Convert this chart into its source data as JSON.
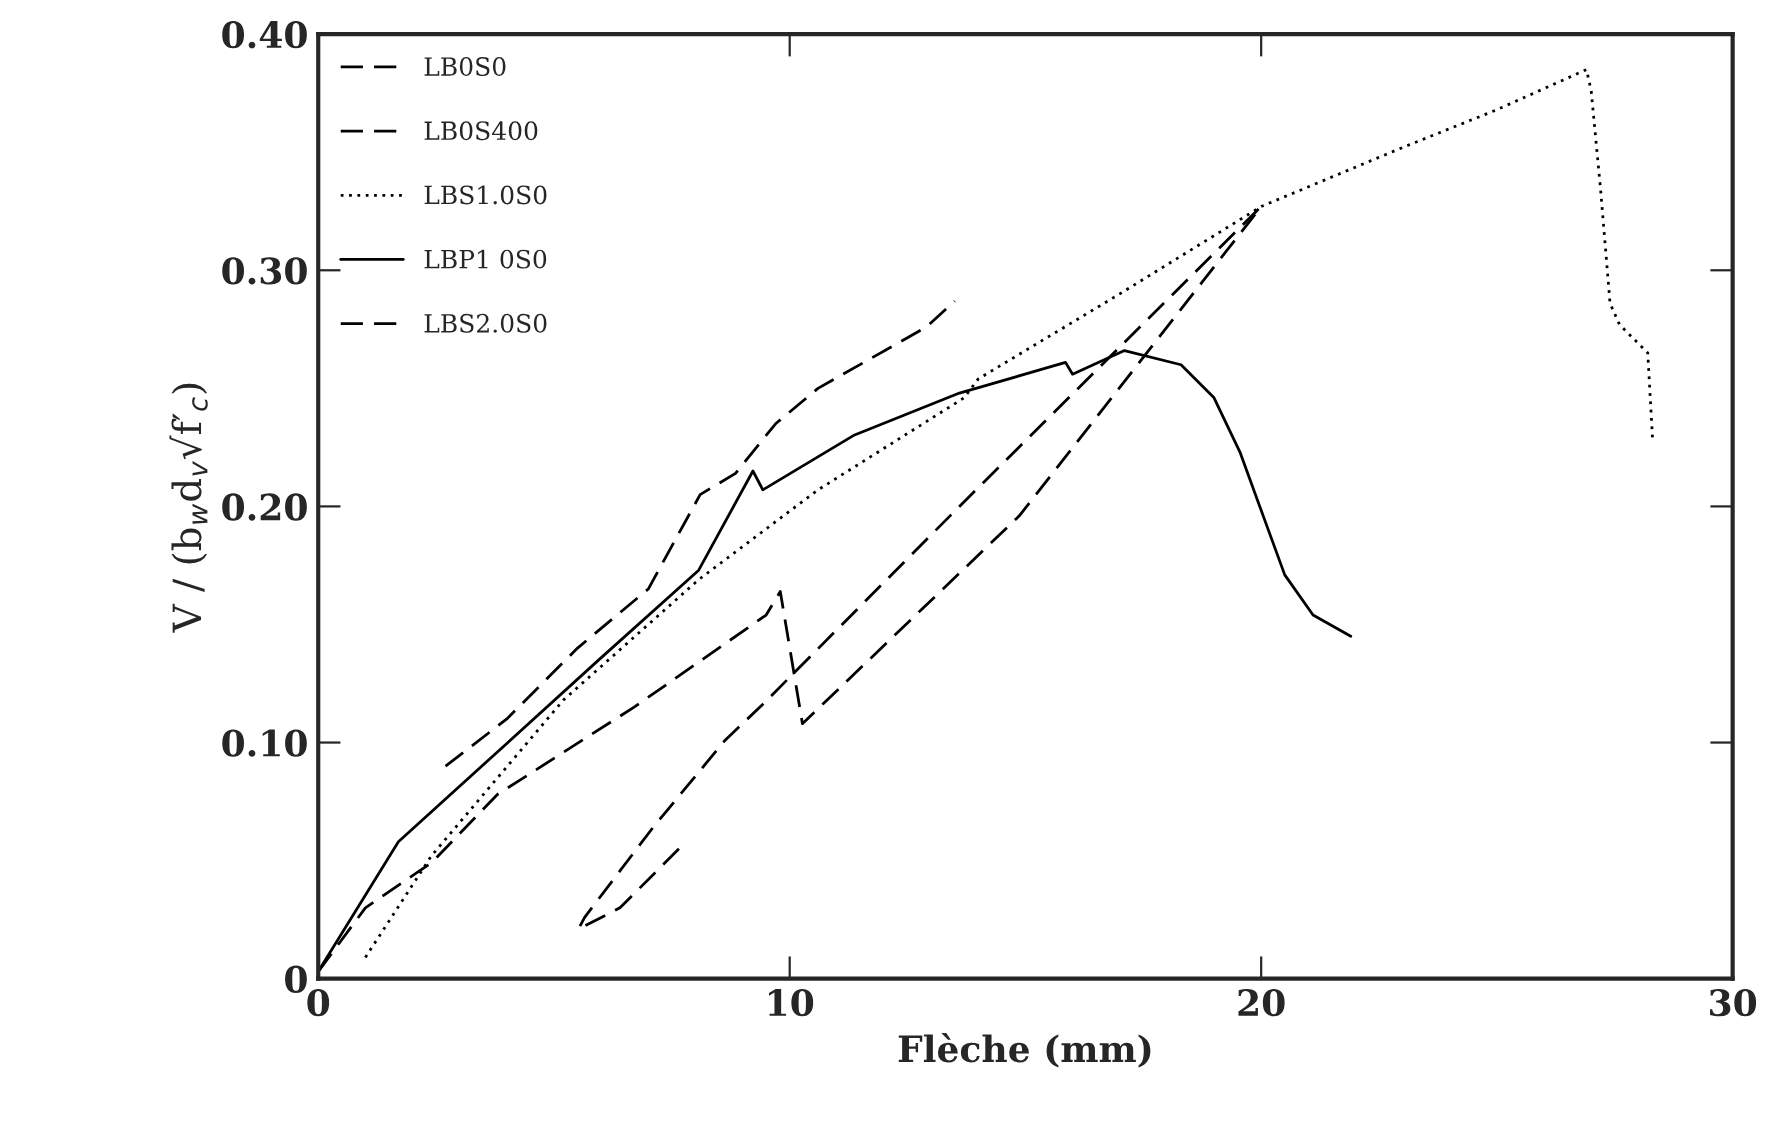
{
  "chart_data": {
    "type": "line",
    "xlabel": "Flèche (mm)",
    "ylabel": "V / (b$_{w}$d$_{v}$√f′$_{c}$)",
    "xlim": [
      0,
      30
    ],
    "xticks": [
      0,
      10,
      20,
      30
    ],
    "ylim": [
      0,
      0.4
    ],
    "yticks": [
      0,
      {
        "value": 0.1,
        "label": "0.10"
      },
      {
        "value": 0.2,
        "label": "0.20"
      },
      {
        "value": 0.3,
        "label": "0.30"
      },
      {
        "value": 0.4,
        "label": "0.40"
      }
    ],
    "legend": "top left",
    "grid": false,
    "series": [
      {
        "name": "LB0S0",
        "color": "#000000",
        "line_style": "dashed",
        "x": [
          2.7,
          4.0,
          5.5,
          7.0,
          8.1,
          8.85,
          9.7,
          10.6,
          12.9,
          13.5
        ],
        "values": [
          0.09,
          0.11,
          0.14,
          0.165,
          0.205,
          0.214,
          0.235,
          0.25,
          0.276,
          0.287
        ]
      },
      {
        "name": "LB0S400",
        "color": "#000000",
        "line_style": "dashed",
        "x": [
          0,
          1.0,
          2.1,
          2.4,
          3.8,
          6.7,
          9.5,
          9.8,
          10.27,
          14.87,
          20.0
        ],
        "values": [
          0.003,
          0.03,
          0.045,
          0.049,
          0.078,
          0.115,
          0.154,
          0.164,
          0.108,
          0.196,
          0.327
        ]
      },
      {
        "name": "LBS1.0S0",
        "color": "#000000",
        "line_style": "dotted",
        "x": [
          1.0,
          2.4,
          5.2,
          8.07,
          10.6,
          13.7,
          14.0,
          17.0,
          20.0,
          23.0,
          25.0,
          26.9,
          27.0,
          27.2,
          27.4,
          27.6,
          28.2,
          28.3
        ],
        "values": [
          0.009,
          0.052,
          0.118,
          0.169,
          0.207,
          0.246,
          0.254,
          0.29,
          0.327,
          0.352,
          0.368,
          0.385,
          0.376,
          0.334,
          0.286,
          0.277,
          0.265,
          0.229
        ]
      },
      {
        "name": "LBP1 0S0",
        "color": "#000000",
        "line_style": "solid",
        "x": [
          0,
          1.7,
          3.8,
          5.95,
          8.07,
          9.22,
          9.43,
          11.35,
          13.6,
          14.3,
          15.85,
          16.0,
          17.1,
          18.3,
          19.0,
          19.55,
          19.97,
          20.5,
          21.1,
          21.9
        ],
        "values": [
          0.003,
          0.058,
          0.096,
          0.135,
          0.173,
          0.215,
          0.207,
          0.23,
          0.248,
          0.252,
          0.261,
          0.256,
          0.266,
          0.26,
          0.246,
          0.223,
          0.2,
          0.171,
          0.154,
          0.145
        ]
      },
      {
        "name": "LBS2.0S0",
        "color": "#000000",
        "line_style": "dashed",
        "x": [
          7.65,
          6.4,
          5.52,
          5.65,
          7.1,
          8.63,
          9.42,
          13.6,
          20.0
        ],
        "values": [
          0.055,
          0.03,
          0.021,
          0.026,
          0.064,
          0.101,
          0.116,
          0.2,
          0.327
        ]
      }
    ]
  }
}
